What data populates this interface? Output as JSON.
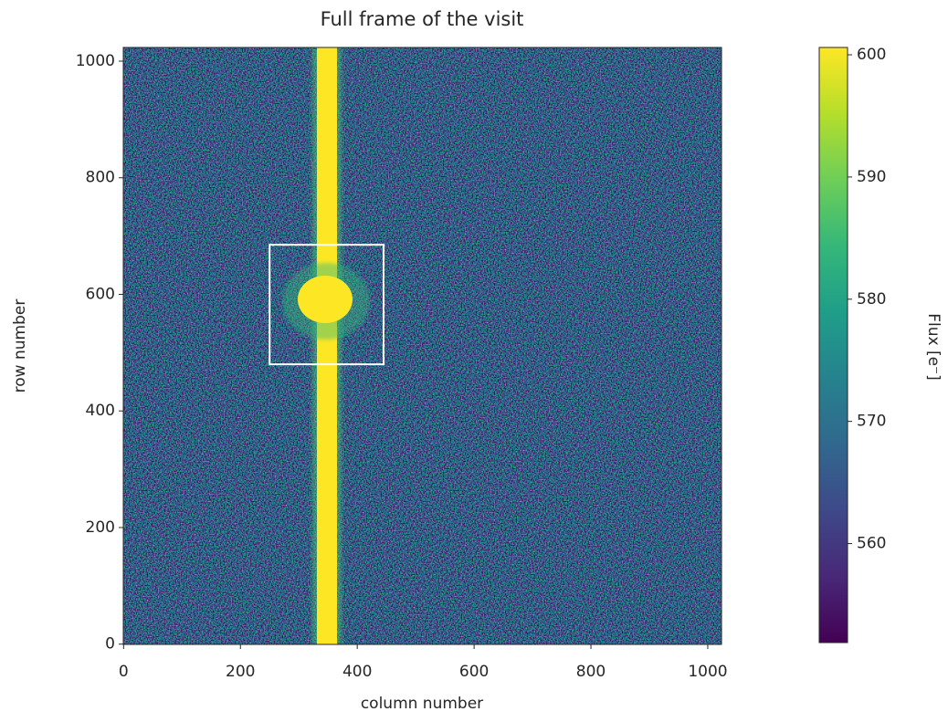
{
  "chart_data": {
    "type": "image",
    "title": "Full frame of the visit",
    "xlabel": "column number",
    "ylabel": "row number",
    "xlim": [
      -0.5,
      1023.5
    ],
    "ylim": [
      -0.5,
      1023.5
    ],
    "xticks": [
      0,
      200,
      400,
      600,
      800,
      1000
    ],
    "yticks": [
      0,
      200,
      400,
      600,
      800,
      1000
    ],
    "colorbar": {
      "label": "Flux [e⁻]",
      "lim": [
        551.9,
        600.6
      ],
      "ticks": [
        560,
        570,
        580,
        590,
        600
      ],
      "colormap": "viridis"
    },
    "box": {
      "x": [
        250,
        445
      ],
      "y": [
        480,
        685
      ],
      "color": "#ffffff"
    }
  }
}
